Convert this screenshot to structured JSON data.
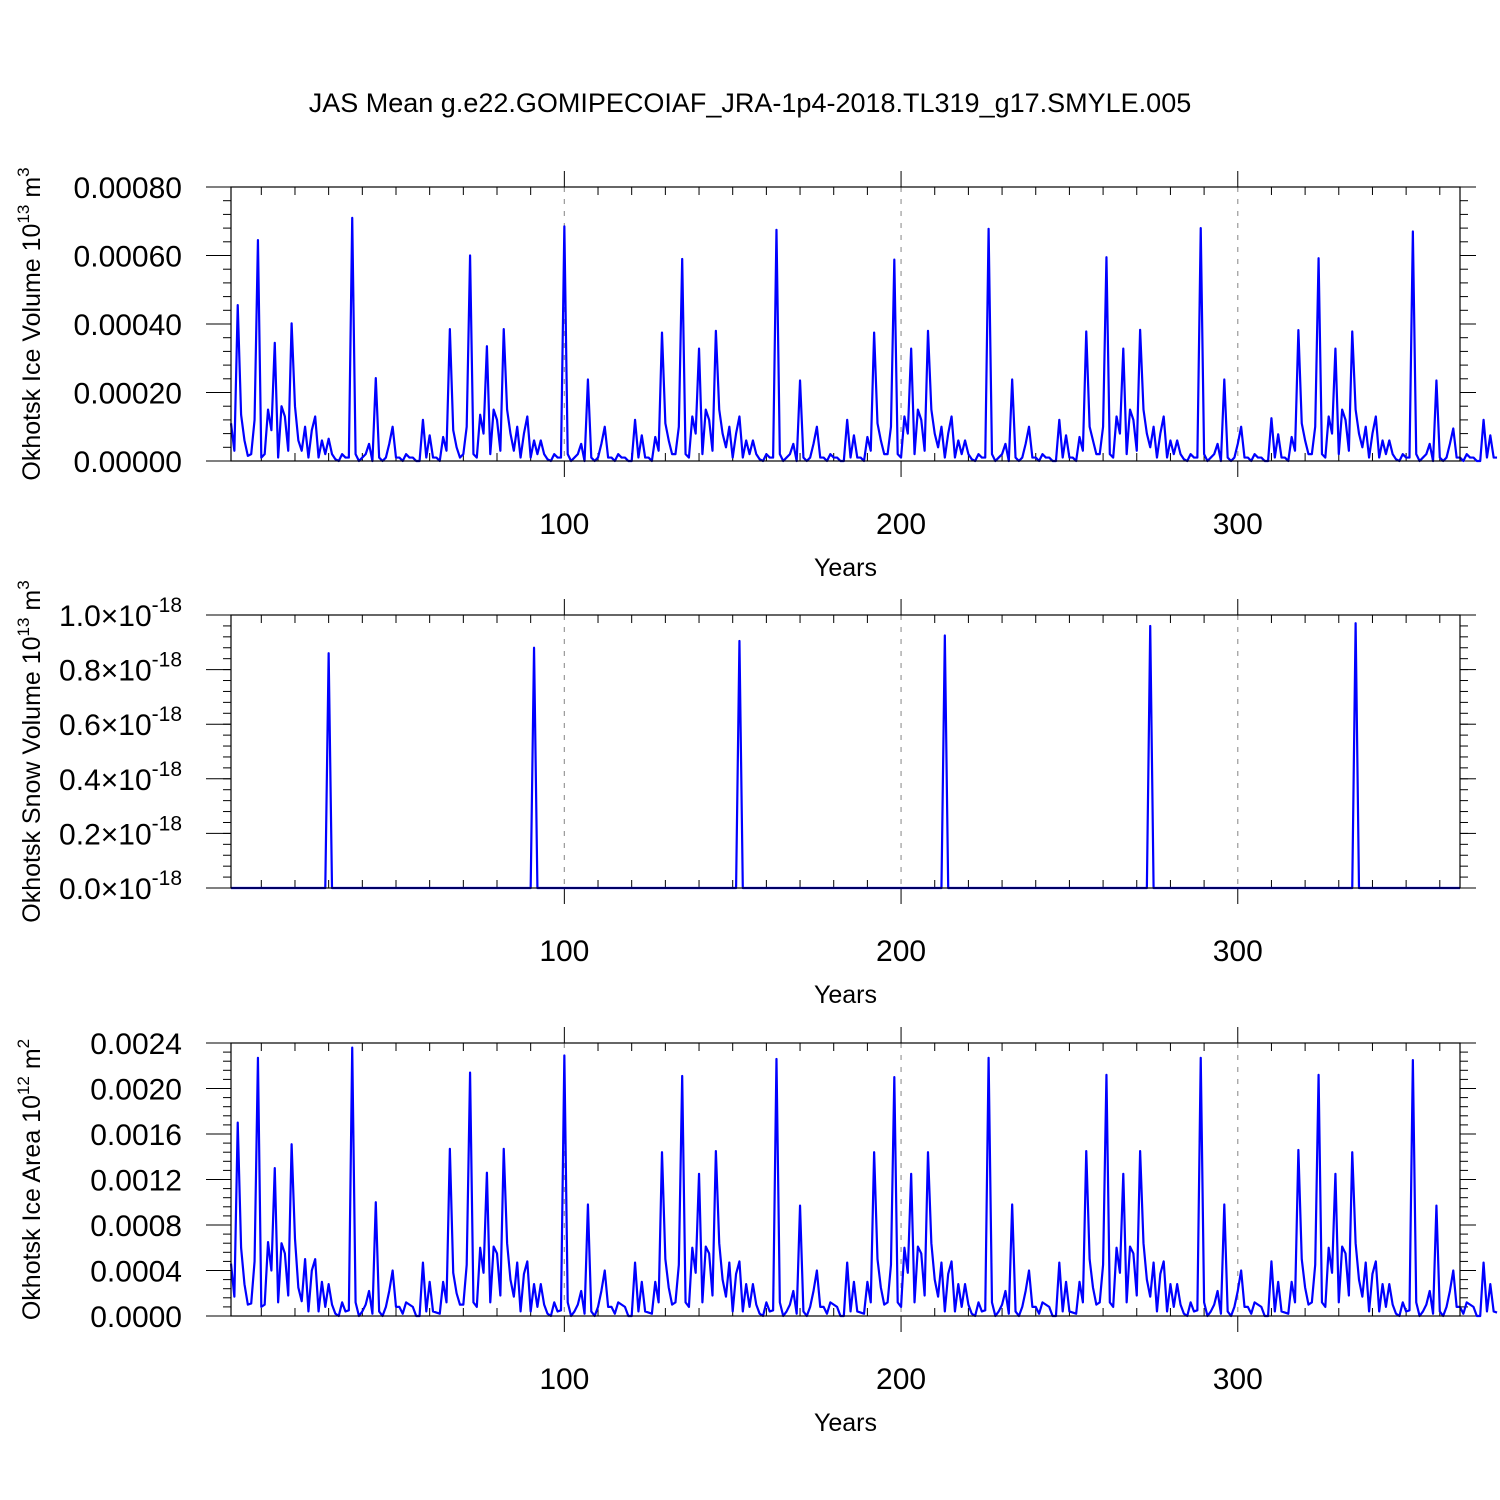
{
  "page": {
    "title": "JAS Mean g.e22.GOMIPECOIAF_JRA-1p4-2018.TL319_g17.SMYLE.005"
  },
  "colors": {
    "series": "#0000ff",
    "grid": "#999999",
    "axis": "#000000"
  },
  "chart_data": [
    {
      "type": "line",
      "name": "ice-volume",
      "ylabel": "Okhotsk Ice Volume 10",
      "ylabel_exp": "13",
      "ylabel_unit": "m",
      "ylabel_unit_exp": "3",
      "xlabel": "Years",
      "xlim": [
        1,
        366
      ],
      "ylim": [
        0,
        0.0008
      ],
      "xticks": [
        100,
        200,
        300
      ],
      "xtick_labels": [
        "100",
        "200",
        "300"
      ],
      "yticks": [
        0,
        0.0002,
        0.0004,
        0.0006,
        0.0008
      ],
      "ytick_labels": [
        "0.00000",
        "0.00020",
        "0.00040",
        "0.00060",
        "0.00080"
      ],
      "ytick_exps": [
        "",
        "",
        "",
        "",
        ""
      ],
      "grid": "vertical dashed at major x ticks",
      "x_start": 1,
      "values": [
        0.00011,
        3e-05,
        0.000455,
        0.000135,
        6e-05,
        1.5e-05,
        2e-05,
        0.00012,
        0.000645,
        1e-05,
        2e-05,
        0.00015,
        9e-05,
        0.000345,
        1e-05,
        0.00016,
        0.00013,
        3e-05,
        0.000402,
        0.00016,
        6e-05,
        3e-05,
        0.0001,
        1e-05,
        9e-05,
        0.00013,
        1e-05,
        6e-05,
        2e-05,
        6.5e-05,
        2e-05,
        5e-06,
        0.0,
        2e-05,
        1e-05,
        1e-05,
        0.00071,
        2e-05,
        0.0,
        1e-05,
        2e-05,
        5e-05,
        0.0,
        0.000242,
        1e-05,
        0.0,
        1e-05,
        5e-05,
        0.0001,
        1e-05,
        1e-05,
        0.0,
        2e-05,
        1e-05,
        1e-05,
        0.0,
        0.0,
        0.00012,
        1e-05,
        7.5e-05,
        1e-05,
        1e-05,
        0.0,
        7e-05,
        3e-05,
        0.000385,
        9e-05,
        4e-05,
        1e-05,
        2e-05,
        0.0001,
        0.0006,
        2e-05,
        1e-05,
        0.000135,
        8e-05,
        0.000335,
        2e-05,
        0.00015,
        0.00012,
        3e-05,
        0.000385,
        0.00015,
        8e-05,
        3e-05,
        0.0001,
        1e-05,
        8e-05,
        0.00013,
        1e-05,
        6e-05,
        2e-05,
        6e-05,
        2e-05,
        5e-06,
        0.0,
        2e-05,
        1e-05,
        1e-05,
        0.000685,
        2e-05,
        0.0,
        1e-05,
        2e-05,
        5e-05,
        0.0,
        0.000238,
        1e-05,
        0.0,
        1e-05,
        5e-05,
        0.0001,
        1e-05,
        1e-05,
        0.0,
        2e-05,
        1e-05,
        1e-05,
        0.0,
        0.0,
        0.00012,
        1e-05,
        7.5e-05,
        1e-05,
        1e-05,
        0.0,
        7e-05,
        3e-05,
        0.000375,
        0.00011,
        6e-05,
        2e-05,
        2e-05,
        0.0001,
        0.00059,
        2e-05,
        1e-05,
        0.00013,
        8e-05,
        0.000328,
        2e-05,
        0.00015,
        0.00012,
        3e-05,
        0.00038,
        0.00015,
        8e-05,
        4e-05,
        0.0001,
        1e-05,
        8e-05,
        0.00013,
        1e-05,
        6e-05,
        2e-05,
        6e-05,
        2e-05,
        5e-06,
        0.0,
        2e-05,
        1e-05,
        1e-05,
        0.000675,
        2e-05,
        0.0,
        1e-05,
        2e-05,
        5e-05,
        0.0,
        0.000235,
        1e-05,
        0.0,
        1e-05,
        5e-05,
        0.0001,
        1e-05,
        1e-05,
        0.0,
        2e-05,
        1e-05,
        1e-05,
        0.0,
        0.0,
        0.00012,
        1e-05,
        7.5e-05,
        1e-05,
        1e-05,
        0.0,
        7e-05,
        3e-05,
        0.000375,
        0.00011,
        6e-05,
        2e-05,
        2e-05,
        0.0001,
        0.000588,
        2e-05,
        1e-05,
        0.00013,
        8e-05,
        0.000328,
        2e-05,
        0.00015,
        0.00012,
        3e-05,
        0.00038,
        0.00015,
        8e-05,
        4e-05,
        0.0001,
        1e-05,
        8e-05,
        0.00013,
        1e-05,
        6e-05,
        2e-05,
        6e-05,
        2e-05,
        5e-06,
        0.0,
        2e-05,
        1e-05,
        1e-05,
        0.000678,
        2e-05,
        0.0,
        1e-05,
        2e-05,
        5e-05,
        0.0,
        0.000238,
        1e-05,
        0.0,
        1e-05,
        5e-05,
        0.0001,
        1e-05,
        1e-05,
        0.0,
        2e-05,
        1e-05,
        1e-05,
        0.0,
        0.0,
        0.00012,
        1e-05,
        7.5e-05,
        1e-05,
        1e-05,
        0.0,
        7e-05,
        3e-05,
        0.000378,
        0.0001,
        6e-05,
        2e-05,
        2e-05,
        0.0001,
        0.000595,
        2e-05,
        1e-05,
        0.00013,
        8e-05,
        0.000328,
        2e-05,
        0.00015,
        0.00012,
        3e-05,
        0.000383,
        0.00015,
        8e-05,
        4e-05,
        0.0001,
        1e-05,
        8e-05,
        0.00013,
        1e-05,
        6e-05,
        2e-05,
        6e-05,
        2e-05,
        5e-06,
        0.0,
        2e-05,
        1e-05,
        1e-05,
        0.00068,
        2e-05,
        0.0,
        1e-05,
        2e-05,
        5e-05,
        0.0,
        0.000238,
        1e-05,
        0.0,
        1e-05,
        5e-05,
        0.0001,
        1e-05,
        1e-05,
        0.0,
        2e-05,
        1e-05,
        1e-05,
        0.0,
        0.0,
        0.000125,
        1e-05,
        7.8e-05,
        1e-05,
        1e-05,
        0.0,
        7e-05,
        3e-05,
        0.000382,
        0.00011,
        6e-05,
        2e-05,
        2e-05,
        0.0001,
        0.000592,
        2e-05,
        1e-05,
        0.00013,
        8e-05,
        0.000328,
        2e-05,
        0.00015,
        0.00012,
        3e-05,
        0.000378,
        0.00015,
        8e-05,
        4e-05,
        0.0001,
        1e-05,
        8e-05,
        0.00013,
        1e-05,
        6e-05,
        2e-05,
        6e-05,
        2e-05,
        5e-06,
        0.0,
        2e-05,
        1e-05,
        1e-05,
        0.00067,
        2e-05,
        0.0,
        1e-05,
        2e-05,
        5e-05,
        0.0,
        0.000235,
        1e-05,
        0.0,
        1e-05,
        5e-05,
        9.5e-05,
        1e-05,
        1e-05,
        0.0,
        2e-05,
        1e-05,
        1e-05,
        0.0,
        0.0,
        0.00012,
        1e-05,
        7.5e-05,
        1e-05,
        1e-05
      ]
    },
    {
      "type": "line",
      "name": "snow-volume",
      "ylabel": "Okhotsk Snow Volume 10",
      "ylabel_exp": "13",
      "ylabel_unit": "m",
      "ylabel_unit_exp": "3",
      "xlabel": "Years",
      "xlim": [
        1,
        366
      ],
      "ylim": [
        0,
        1.0
      ],
      "value_scale": "x10^-18",
      "xticks": [
        100,
        200,
        300
      ],
      "xtick_labels": [
        "100",
        "200",
        "300"
      ],
      "yticks": [
        0,
        0.2,
        0.4,
        0.6,
        0.8,
        1.0
      ],
      "ytick_labels": [
        "0.0×10",
        "0.2×10",
        "0.4×10",
        "0.6×10",
        "0.8×10",
        "1.0×10"
      ],
      "ytick_exps": [
        "-18",
        "-18",
        "-18",
        "-18",
        "-18",
        "-18"
      ],
      "grid": "vertical dashed at major x ticks",
      "points": [
        [
          1,
          0
        ],
        [
          29,
          0
        ],
        [
          30,
          0.86
        ],
        [
          31,
          0
        ],
        [
          90,
          0
        ],
        [
          91,
          0.88
        ],
        [
          92,
          0
        ],
        [
          151,
          0
        ],
        [
          152,
          0.905
        ],
        [
          153,
          0
        ],
        [
          212,
          0
        ],
        [
          213,
          0.925
        ],
        [
          214,
          0
        ],
        [
          273,
          0
        ],
        [
          274,
          0.96
        ],
        [
          275,
          0
        ],
        [
          334,
          0
        ],
        [
          335,
          0.97
        ],
        [
          336,
          0
        ],
        [
          366,
          0
        ]
      ]
    },
    {
      "type": "line",
      "name": "ice-area",
      "ylabel": "Okhotsk Ice Area 10",
      "ylabel_exp": "12",
      "ylabel_unit": "m",
      "ylabel_unit_exp": "2",
      "xlabel": "Years",
      "xlim": [
        1,
        366
      ],
      "ylim": [
        0,
        0.0024
      ],
      "xticks": [
        100,
        200,
        300
      ],
      "xtick_labels": [
        "100",
        "200",
        "300"
      ],
      "yticks": [
        0,
        0.0004,
        0.0008,
        0.0012,
        0.0016,
        0.002,
        0.0024
      ],
      "ytick_labels": [
        "0.0000",
        "0.0004",
        "0.0008",
        "0.0012",
        "0.0016",
        "0.0020",
        "0.0024"
      ],
      "ytick_exps": [
        "",
        "",
        "",
        "",
        "",
        "",
        ""
      ],
      "grid": "vertical dashed at major x ticks",
      "x_start": 1,
      "values": [
        0.00046,
        0.00017,
        0.0017,
        0.0006,
        0.00028,
        0.0001,
        0.00011,
        0.00048,
        0.00227,
        8e-05,
        0.0001,
        0.00065,
        0.0004,
        0.0013,
        0.00012,
        0.00064,
        0.00055,
        0.00018,
        0.00151,
        0.00068,
        0.00025,
        0.00013,
        0.0005,
        4e-05,
        0.0004,
        0.0005,
        4e-05,
        0.0003,
        8e-05,
        0.00028,
        0.0001,
        2e-05,
        0.0,
        0.00012,
        4e-05,
        5e-05,
        0.00236,
        0.00012,
        0.0,
        4e-05,
        0.0001,
        0.00022,
        2e-05,
        0.001,
        4e-05,
        0.0,
        8e-05,
        0.00022,
        0.0004,
        8e-05,
        8e-05,
        2e-05,
        0.00012,
        0.0001,
        8e-05,
        0.0,
        0.0,
        0.00047,
        4e-05,
        0.0003,
        4e-05,
        3e-05,
        2e-05,
        0.0003,
        0.00012,
        0.00147,
        0.00038,
        0.0002,
        0.0001,
        0.0001,
        0.00045,
        0.00214,
        0.00012,
        8e-05,
        0.0006,
        0.00038,
        0.00126,
        0.00012,
        0.00061,
        0.00055,
        0.00018,
        0.00147,
        0.00064,
        0.00032,
        0.00017,
        0.00047,
        4e-05,
        0.00037,
        0.00048,
        4e-05,
        0.00028,
        8e-05,
        0.00028,
        0.0001,
        2e-05,
        0.0,
        0.00012,
        4e-05,
        5e-05,
        0.00229,
        0.00012,
        0.0,
        4e-05,
        0.0001,
        0.00022,
        2e-05,
        0.00098,
        4e-05,
        0.0,
        8e-05,
        0.00022,
        0.0004,
        8e-05,
        8e-05,
        2e-05,
        0.00012,
        0.0001,
        8e-05,
        0.0,
        0.0,
        0.00047,
        4e-05,
        0.0003,
        4e-05,
        3e-05,
        2e-05,
        0.0003,
        0.00012,
        0.00144,
        0.0005,
        0.00025,
        0.0001,
        0.00012,
        0.00045,
        0.00211,
        0.00012,
        8e-05,
        0.0006,
        0.00038,
        0.00125,
        0.00012,
        0.00061,
        0.00055,
        0.00018,
        0.00145,
        0.00064,
        0.00032,
        0.00017,
        0.00047,
        4e-05,
        0.00037,
        0.00048,
        4e-05,
        0.00028,
        8e-05,
        0.00028,
        0.0001,
        2e-05,
        0.0,
        0.00012,
        4e-05,
        5e-05,
        0.00226,
        0.00012,
        0.0,
        4e-05,
        0.0001,
        0.00022,
        2e-05,
        0.00097,
        4e-05,
        0.0,
        8e-05,
        0.00022,
        0.0004,
        8e-05,
        8e-05,
        2e-05,
        0.00012,
        0.0001,
        8e-05,
        0.0,
        0.0,
        0.00047,
        4e-05,
        0.0003,
        4e-05,
        3e-05,
        2e-05,
        0.0003,
        0.00012,
        0.00144,
        0.0005,
        0.00025,
        0.0001,
        0.00012,
        0.00045,
        0.0021,
        0.00012,
        8e-05,
        0.0006,
        0.00038,
        0.00125,
        0.00012,
        0.00061,
        0.00055,
        0.00018,
        0.00144,
        0.00064,
        0.00032,
        0.00017,
        0.00047,
        4e-05,
        0.00037,
        0.00048,
        4e-05,
        0.00028,
        8e-05,
        0.00028,
        0.0001,
        2e-05,
        0.0,
        0.00012,
        4e-05,
        5e-05,
        0.00227,
        0.00012,
        0.0,
        4e-05,
        0.0001,
        0.00022,
        2e-05,
        0.00098,
        4e-05,
        0.0,
        8e-05,
        0.00022,
        0.0004,
        8e-05,
        8e-05,
        2e-05,
        0.00012,
        0.0001,
        8e-05,
        0.0,
        0.0,
        0.00047,
        4e-05,
        0.0003,
        4e-05,
        3e-05,
        2e-05,
        0.0003,
        0.00012,
        0.00145,
        0.0005,
        0.00025,
        0.0001,
        0.00012,
        0.00045,
        0.00212,
        0.00012,
        8e-05,
        0.0006,
        0.00038,
        0.00125,
        0.00012,
        0.00061,
        0.00055,
        0.00018,
        0.00145,
        0.00064,
        0.00032,
        0.00017,
        0.00047,
        4e-05,
        0.00037,
        0.00048,
        4e-05,
        0.00028,
        8e-05,
        0.00028,
        0.0001,
        2e-05,
        0.0,
        0.00012,
        4e-05,
        5e-05,
        0.00227,
        0.00012,
        0.0,
        4e-05,
        0.0001,
        0.00022,
        2e-05,
        0.00098,
        4e-05,
        0.0,
        8e-05,
        0.00022,
        0.0004,
        8e-05,
        8e-05,
        2e-05,
        0.00012,
        0.0001,
        8e-05,
        0.0,
        0.0,
        0.00048,
        4e-05,
        0.0003,
        4e-05,
        3e-05,
        2e-05,
        0.0003,
        0.00012,
        0.00146,
        0.0005,
        0.00025,
        0.0001,
        0.00012,
        0.00045,
        0.00212,
        0.00012,
        8e-05,
        0.0006,
        0.00038,
        0.00125,
        0.00012,
        0.00061,
        0.00055,
        0.00018,
        0.00144,
        0.00064,
        0.00032,
        0.00017,
        0.00047,
        4e-05,
        0.00037,
        0.00048,
        4e-05,
        0.00028,
        8e-05,
        0.00028,
        0.0001,
        2e-05,
        0.0,
        0.00012,
        4e-05,
        5e-05,
        0.00225,
        0.00012,
        0.0,
        4e-05,
        0.0001,
        0.00022,
        2e-05,
        0.00097,
        4e-05,
        0.0,
        8e-05,
        0.00022,
        0.0004,
        8e-05,
        8e-05,
        2e-05,
        0.00012,
        0.0001,
        8e-05,
        0.0,
        0.0,
        0.00047,
        4e-05,
        0.00028,
        4e-05,
        3e-05
      ]
    }
  ]
}
